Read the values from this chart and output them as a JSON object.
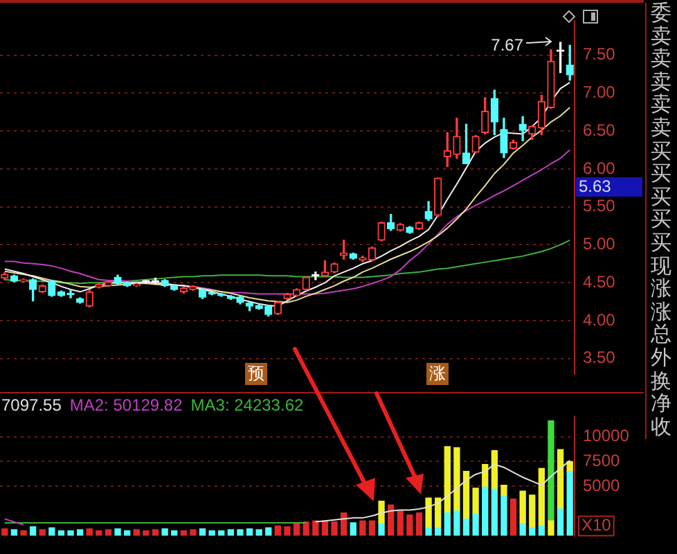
{
  "chart_data": [
    {
      "type": "candlestick",
      "categories": [
        null,
        null,
        null,
        null,
        null,
        null,
        null,
        null,
        null,
        null,
        null,
        null,
        null,
        null,
        null,
        null,
        null,
        null,
        null,
        null,
        null,
        null,
        null,
        null,
        null,
        null,
        null,
        null,
        null,
        null,
        null,
        null,
        null,
        null,
        null,
        null,
        null,
        null,
        null,
        null,
        null,
        null,
        null,
        null,
        null,
        null,
        null,
        null,
        null,
        null,
        null,
        null,
        null,
        null,
        null,
        null,
        null,
        null,
        null,
        null,
        null
      ],
      "ohlc": [
        [
          4.56,
          4.63,
          4.54,
          4.61
        ],
        [
          4.59,
          4.6,
          4.51,
          4.52
        ],
        [
          4.52,
          4.55,
          4.51,
          4.54
        ],
        [
          4.54,
          4.55,
          4.26,
          4.41
        ],
        [
          4.38,
          4.47,
          4.37,
          4.46
        ],
        [
          4.52,
          4.53,
          4.32,
          4.33
        ],
        [
          4.38,
          4.39,
          4.32,
          4.33
        ],
        [
          4.36,
          4.41,
          4.3,
          4.34
        ],
        [
          4.29,
          4.3,
          4.23,
          4.24
        ],
        [
          4.19,
          4.4,
          4.18,
          4.38
        ],
        [
          4.44,
          4.49,
          4.43,
          4.48
        ],
        [
          4.46,
          4.52,
          4.45,
          4.51
        ],
        [
          4.57,
          4.6,
          4.48,
          4.49
        ],
        [
          4.5,
          4.51,
          4.45,
          4.46
        ],
        [
          4.46,
          4.49,
          4.45,
          4.48
        ],
        [
          4.51,
          4.53,
          4.49,
          4.51
        ],
        [
          4.51,
          4.56,
          4.48,
          4.51
        ],
        [
          4.53,
          4.54,
          4.45,
          4.46
        ],
        [
          4.46,
          4.47,
          4.4,
          4.41
        ],
        [
          4.38,
          4.44,
          4.36,
          4.43
        ],
        [
          4.41,
          4.46,
          4.4,
          4.45
        ],
        [
          4.41,
          4.42,
          4.29,
          4.31
        ],
        [
          4.36,
          4.37,
          4.34,
          4.35
        ],
        [
          4.35,
          4.36,
          4.32,
          4.33
        ],
        [
          4.32,
          4.33,
          4.28,
          4.29
        ],
        [
          4.31,
          4.32,
          4.22,
          4.24
        ],
        [
          4.23,
          4.24,
          4.13,
          4.19
        ],
        [
          4.2,
          4.21,
          4.15,
          4.16
        ],
        [
          4.19,
          4.2,
          4.06,
          4.08
        ],
        [
          4.09,
          4.25,
          4.08,
          4.24
        ],
        [
          4.29,
          4.36,
          4.28,
          4.35
        ],
        [
          4.33,
          4.42,
          4.32,
          4.41
        ],
        [
          4.41,
          4.58,
          4.4,
          4.57
        ],
        [
          4.59,
          4.64,
          4.54,
          4.59
        ],
        [
          4.59,
          4.79,
          4.58,
          4.64
        ],
        [
          4.64,
          4.76,
          4.63,
          4.75
        ],
        [
          4.86,
          5.06,
          4.81,
          4.89
        ],
        [
          4.88,
          4.89,
          4.81,
          4.82
        ],
        [
          4.8,
          4.85,
          4.78,
          4.83
        ],
        [
          4.8,
          4.97,
          4.79,
          4.96
        ],
        [
          5.06,
          5.3,
          5.05,
          5.29
        ],
        [
          5.29,
          5.4,
          5.19,
          5.21
        ],
        [
          5.19,
          5.28,
          5.18,
          5.27
        ],
        [
          5.23,
          5.24,
          5.15,
          5.16
        ],
        [
          5.21,
          5.3,
          5.2,
          5.29
        ],
        [
          5.44,
          5.57,
          5.32,
          5.34
        ],
        [
          5.39,
          5.88,
          5.37,
          5.88
        ],
        [
          6.16,
          6.48,
          6.03,
          6.24
        ],
        [
          6.19,
          6.67,
          6.14,
          6.43
        ],
        [
          6.21,
          6.59,
          6.07,
          6.07
        ],
        [
          6.22,
          6.44,
          6.21,
          6.43
        ],
        [
          6.48,
          6.94,
          6.46,
          6.76
        ],
        [
          6.93,
          7.04,
          6.45,
          6.62
        ],
        [
          6.52,
          6.67,
          6.15,
          6.21
        ],
        [
          6.27,
          6.38,
          6.26,
          6.35
        ],
        [
          6.59,
          6.69,
          6.37,
          6.51
        ],
        [
          6.46,
          6.57,
          6.39,
          6.56
        ],
        [
          6.54,
          6.97,
          6.45,
          6.89
        ],
        [
          6.81,
          7.57,
          6.8,
          7.42
        ],
        [
          7.55,
          7.67,
          7.27,
          7.55
        ],
        [
          7.37,
          7.63,
          7.17,
          7.24
        ]
      ],
      "colors": [
        "#ff3c3c",
        "#54fcfc",
        "#ff3c3c",
        "#54fcfc",
        "#ff3c3c",
        "#54fcfc",
        "#54fcfc",
        "#54fcfc",
        "#54fcfc",
        "#ff3c3c",
        "#ff3c3c",
        "#ff3c3c",
        "#54fcfc",
        "#54fcfc",
        "#ff3c3c",
        "#ffffff",
        "#ffffff",
        "#54fcfc",
        "#54fcfc",
        "#ff3c3c",
        "#ff3c3c",
        "#54fcfc",
        "#54fcfc",
        "#54fcfc",
        "#54fcfc",
        "#54fcfc",
        "#54fcfc",
        "#54fcfc",
        "#54fcfc",
        "#ff3c3c",
        "#ff3c3c",
        "#ff3c3c",
        "#ff3c3c",
        "#ffffff",
        "#ff3c3c",
        "#ff3c3c",
        "#ff3c3c",
        "#54fcfc",
        "#ff3c3c",
        "#ff3c3c",
        "#ff3c3c",
        "#54fcfc",
        "#ff3c3c",
        "#54fcfc",
        "#ff3c3c",
        "#54fcfc",
        "#ff3c3c",
        "#ff3c3c",
        "#ff3c3c",
        "#54fcfc",
        "#ff3c3c",
        "#ff3c3c",
        "#54fcfc",
        "#54fcfc",
        "#ff3c3c",
        "#54fcfc",
        "#ff3c3c",
        "#ff3c3c",
        "#ff3c3c",
        "#ffffff",
        "#54fcfc"
      ],
      "series": [
        {
          "type": "line",
          "color": "#f0f0f0",
          "values": [
            4.68,
            4.65,
            4.62,
            4.58,
            4.54,
            4.5,
            4.45,
            4.41,
            4.38,
            4.42,
            4.47,
            4.49,
            4.5,
            4.5,
            4.5,
            4.51,
            4.5,
            4.49,
            4.47,
            4.46,
            4.44,
            4.41,
            4.38,
            4.35,
            4.32,
            4.28,
            4.25,
            4.22,
            4.2,
            4.19,
            4.26,
            4.33,
            4.39,
            4.44,
            4.5,
            4.59,
            4.64,
            4.69,
            4.75,
            4.79,
            4.85,
            4.92,
            4.98,
            5.05,
            5.11,
            5.2,
            5.39,
            5.6,
            5.8,
            6.01,
            6.23,
            6.34,
            6.42,
            6.48,
            6.47,
            6.46,
            6.56,
            6.68,
            6.89,
            7.06,
            7.14
          ]
        },
        {
          "type": "line",
          "color": "#e6dc96",
          "values": [
            4.65,
            4.63,
            4.61,
            4.59,
            4.56,
            4.53,
            4.51,
            4.48,
            4.45,
            4.44,
            4.45,
            4.46,
            4.47,
            4.48,
            4.49,
            4.49,
            4.48,
            4.47,
            4.47,
            4.46,
            4.44,
            4.42,
            4.4,
            4.38,
            4.36,
            4.33,
            4.3,
            4.28,
            4.26,
            4.25,
            4.24,
            4.27,
            4.32,
            4.36,
            4.41,
            4.46,
            4.52,
            4.57,
            4.64,
            4.69,
            4.75,
            4.81,
            4.86,
            4.91,
            4.97,
            5.04,
            5.12,
            5.22,
            5.34,
            5.47,
            5.63,
            5.78,
            5.94,
            6.06,
            6.21,
            6.31,
            6.42,
            6.51,
            6.62,
            6.7,
            6.81
          ]
        },
        {
          "type": "line",
          "color": "#c040c0",
          "values": [
            4.78,
            4.78,
            4.76,
            4.75,
            4.74,
            4.72,
            4.69,
            4.65,
            4.62,
            4.58,
            4.54,
            4.53,
            4.53,
            4.52,
            4.51,
            4.5,
            4.49,
            4.48,
            4.47,
            4.46,
            4.45,
            4.43,
            4.41,
            4.38,
            4.37,
            4.37,
            4.36,
            4.35,
            4.35,
            4.35,
            4.35,
            4.35,
            4.35,
            4.35,
            4.36,
            4.38,
            4.4,
            4.42,
            4.45,
            4.49,
            4.53,
            4.58,
            4.67,
            4.79,
            4.89,
            5.01,
            5.14,
            5.27,
            5.37,
            5.45,
            5.52,
            5.58,
            5.65,
            5.71,
            5.78,
            5.85,
            5.92,
            5.99,
            6.07,
            6.14,
            6.25
          ]
        },
        {
          "type": "line",
          "color": "#3cb43c",
          "values": [
            4.54,
            4.53,
            4.53,
            4.52,
            4.52,
            4.51,
            4.5,
            4.5,
            4.49,
            4.5,
            4.5,
            4.51,
            4.51,
            4.52,
            4.53,
            4.54,
            4.55,
            4.56,
            4.57,
            4.58,
            4.58,
            4.59,
            4.59,
            4.6,
            4.6,
            4.6,
            4.6,
            4.6,
            4.59,
            4.59,
            4.59,
            4.58,
            4.58,
            4.58,
            4.58,
            4.58,
            4.57,
            4.57,
            4.57,
            4.58,
            4.59,
            4.6,
            4.62,
            4.63,
            4.64,
            4.66,
            4.68,
            4.69,
            4.71,
            4.73,
            4.75,
            4.77,
            4.79,
            4.81,
            4.83,
            4.85,
            4.88,
            4.91,
            4.95,
            5.0,
            5.06
          ]
        }
      ],
      "ylim": [
        3.3,
        7.95
      ],
      "yticks": [
        {
          "value": 3.5,
          "label": "3.50"
        },
        {
          "value": 4,
          "label": "4.00"
        },
        {
          "value": 4.5,
          "label": "4.50"
        },
        {
          "value": 5,
          "label": "5.00"
        },
        {
          "value": 5.5,
          "label": "5.50"
        },
        {
          "value": 6,
          "label": "6.00"
        },
        {
          "value": 6.5,
          "label": "6.50"
        },
        {
          "value": 7,
          "label": "7.00"
        },
        {
          "value": 7.5,
          "label": "7.50"
        }
      ],
      "grid": "y",
      "tick_labels": "y",
      "annotations": [
        "预",
        "涨",
        "7.67",
        "5.63",
        "委卖卖卖卖卖买买买买买现涨涨总外换净收"
      ]
    },
    {
      "type": "bar",
      "stacked": true,
      "categories": [
        null,
        null,
        null,
        null,
        null,
        null,
        null,
        null,
        null,
        null,
        null,
        null,
        null,
        null,
        null,
        null,
        null,
        null,
        null,
        null,
        null,
        null,
        null,
        null,
        null,
        null,
        null,
        null,
        null,
        null,
        null,
        null,
        null,
        null,
        null,
        null,
        null,
        null,
        null,
        null,
        null,
        null,
        null,
        null,
        null,
        null,
        null,
        null,
        null,
        null,
        null,
        null,
        null,
        null,
        null,
        null,
        null,
        null,
        null,
        null,
        null
      ],
      "series": [
        {
          "type": "bar",
          "color": "#54fcfc",
          "values": [
            null,
            600,
            null,
            900,
            null,
            800,
            500,
            500,
            600,
            null,
            null,
            null,
            700,
            500,
            null,
            null,
            null,
            700,
            500,
            null,
            null,
            700,
            500,
            500,
            600,
            600,
            700,
            600,
            800,
            null,
            null,
            null,
            null,
            null,
            null,
            null,
            null,
            1300,
            null,
            null,
            1200,
            null,
            null,
            null,
            null,
            800,
            800,
            2300,
            2500,
            1700,
            2200,
            4900,
            4700,
            4000,
            null,
            1200,
            800,
            1000,
            null,
            2700,
            6500
          ]
        },
        {
          "type": "bar",
          "color": "#f0f028",
          "values": [
            null,
            null,
            null,
            null,
            null,
            null,
            null,
            null,
            null,
            null,
            null,
            null,
            null,
            null,
            null,
            null,
            null,
            null,
            null,
            null,
            null,
            null,
            null,
            null,
            null,
            null,
            null,
            null,
            null,
            null,
            null,
            null,
            null,
            null,
            null,
            null,
            null,
            null,
            null,
            null,
            2300,
            null,
            null,
            null,
            null,
            3000,
            3000,
            6700,
            6400,
            4800,
            2600,
            2300,
            3900,
            1100,
            null,
            3300,
            3300,
            5800,
            1500,
            6000,
            1000
          ]
        },
        {
          "type": "bar",
          "color": "#e02828",
          "values": [
            700,
            null,
            500,
            null,
            600,
            null,
            null,
            null,
            null,
            700,
            500,
            600,
            null,
            null,
            600,
            500,
            600,
            null,
            null,
            500,
            600,
            null,
            null,
            null,
            null,
            null,
            null,
            null,
            null,
            1000,
            900,
            1200,
            1400,
            1500,
            1500,
            1400,
            2300,
            null,
            1500,
            1500,
            null,
            3100,
            2500,
            2100,
            2300,
            null,
            null,
            null,
            null,
            null,
            null,
            null,
            null,
            null,
            3700,
            null,
            null,
            null,
            null,
            null,
            null
          ]
        },
        {
          "type": "bar",
          "color": "#3cdc3c",
          "values": [
            null,
            null,
            null,
            null,
            null,
            null,
            null,
            null,
            null,
            null,
            null,
            null,
            null,
            null,
            null,
            null,
            null,
            null,
            null,
            null,
            null,
            null,
            null,
            null,
            null,
            null,
            null,
            null,
            null,
            null,
            null,
            null,
            null,
            null,
            null,
            null,
            null,
            null,
            null,
            null,
            null,
            null,
            null,
            null,
            null,
            null,
            null,
            null,
            null,
            null,
            null,
            null,
            null,
            null,
            null,
            null,
            null,
            null,
            10100,
            null,
            null
          ]
        },
        {
          "type": "line",
          "name": "7097.55",
          "color": "#e0e0e0",
          "values": [
            null,
            null,
            null,
            null,
            null,
            null,
            null,
            null,
            null,
            null,
            null,
            null,
            null,
            null,
            null,
            null,
            null,
            null,
            null,
            null,
            null,
            null,
            null,
            null,
            null,
            null,
            null,
            null,
            null,
            null,
            null,
            null,
            null,
            1400,
            1500,
            1600,
            1700,
            1800,
            1800,
            2000,
            2300,
            2500,
            2600,
            2600,
            2700,
            2900,
            3300,
            4000,
            4800,
            5600,
            6200,
            6500,
            7200,
            6900,
            6400,
            5900,
            5500,
            5100,
            6000,
            6800,
            7600
          ]
        },
        {
          "type": "line",
          "name": "MA2: 50129.82",
          "color": "#c040c0",
          "values": [
            1700,
            1400,
            1100,
            null,
            null,
            null,
            null,
            null,
            null,
            null,
            null,
            null,
            null,
            null,
            null,
            null,
            null,
            null,
            null,
            null,
            null,
            null,
            null,
            null,
            null,
            null,
            null,
            null,
            null,
            null,
            null,
            null,
            null,
            null,
            null,
            null,
            null,
            null,
            null,
            null,
            null,
            null,
            null,
            null,
            null,
            null,
            null,
            null,
            null,
            null,
            null,
            null,
            null,
            null,
            null,
            null,
            null,
            null,
            null,
            null,
            null
          ]
        },
        {
          "type": "line",
          "name": "MA3: 24233.62",
          "color": "#3cb43c",
          "values": [
            1300,
            1300,
            1300,
            1300,
            1300,
            1300,
            1300,
            1300,
            1300,
            1300,
            1300,
            1300,
            1300,
            1300,
            1300,
            1300,
            1300,
            1300,
            1300,
            1300,
            1300,
            1300,
            1300,
            1300,
            1300,
            1300,
            1300,
            1300,
            1300,
            1300,
            1300,
            1300,
            1300,
            null,
            null,
            null,
            null,
            null,
            null,
            null,
            null,
            null,
            null,
            null,
            null,
            null,
            null,
            null,
            null,
            null,
            null,
            null,
            null,
            null,
            null,
            null,
            null,
            null,
            null,
            null,
            null
          ]
        }
      ],
      "ylim": [
        0,
        12000
      ],
      "yticks": [
        5000,
        7500,
        10000
      ],
      "grid": "y",
      "tick_labels": "y",
      "legend": "top left",
      "annotations": [
        "X10"
      ]
    }
  ]
}
